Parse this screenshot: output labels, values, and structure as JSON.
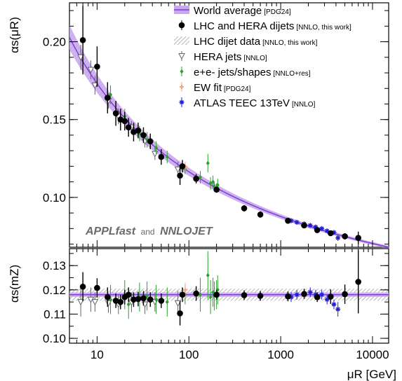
{
  "chart_data": [
    {
      "type": "scatter",
      "panel": "top",
      "ylabel": "αs(μR)",
      "ylim": [
        0.068,
        0.225
      ],
      "xlim": [
        5,
        15000
      ],
      "xscale": "log",
      "yticks": [
        0.1,
        0.15,
        0.2
      ],
      "ytick_labels": [
        "0.10",
        "0.15",
        "0.20"
      ],
      "annotation": {
        "bold1": "APPLfast",
        "mid": "and",
        "bold2": "NNLOJET"
      },
      "legend_position": "top-right",
      "legend": [
        {
          "id": "wa",
          "label": "World average",
          "sub": "[PDG24]",
          "color": "#7b3fd6",
          "marker": "band"
        },
        {
          "id": "lhc_hera",
          "label": "LHC and HERA dijets",
          "sub": "[NNLO, this work]",
          "color": "#000000",
          "marker": "circle"
        },
        {
          "id": "lhc_band",
          "label": "LHC dijet data",
          "sub": "[NNLO, this work]",
          "color": "#888888",
          "marker": "hatch"
        },
        {
          "id": "hera",
          "label": "HERA jets",
          "sub": "[NNLO]",
          "color": "#666666",
          "marker": "triangle-down-open"
        },
        {
          "id": "ee",
          "label": "e+e- jets/shapes",
          "sub": "[NNLO+res]",
          "color": "#2ca02c",
          "marker": "diamond"
        },
        {
          "id": "ew",
          "label": "EW fit",
          "sub": "[PDG24]",
          "color": "#f4a582",
          "marker": "cross"
        },
        {
          "id": "atlas",
          "label": "ATLAS TEEC 13TeV",
          "sub": "[NNLO]",
          "color": "#1f1fd6",
          "marker": "star"
        }
      ],
      "series": [
        {
          "id": "lhc_hera",
          "points": [
            [
              7,
              0.201,
              0.022
            ],
            [
              10,
              0.184,
              0.013
            ],
            [
              13,
              0.164,
              0.01
            ],
            [
              16,
              0.154,
              0.008
            ],
            [
              18,
              0.15,
              0.007
            ],
            [
              20,
              0.149,
              0.006
            ],
            [
              22,
              0.145,
              0.006
            ],
            [
              25,
              0.142,
              0.006
            ],
            [
              28,
              0.143,
              0.005
            ],
            [
              32,
              0.14,
              0.005
            ],
            [
              38,
              0.136,
              0.005
            ],
            [
              50,
              0.126,
              0.005
            ],
            [
              80,
              0.114,
              0.006
            ],
            [
              85,
              0.12,
              0.004
            ],
            [
              120,
              0.112,
              0.003
            ],
            [
              200,
              0.105,
              0.002
            ],
            [
              400,
              0.093,
              0.002
            ],
            [
              600,
              0.089,
              0.002
            ],
            [
              1200,
              0.085,
              0.0015
            ],
            [
              1800,
              0.082,
              0.0015
            ],
            [
              2500,
              0.079,
              0.0015
            ],
            [
              3500,
              0.077,
              0.0015
            ],
            [
              5000,
              0.075,
              0.002
            ],
            [
              7000,
              0.074,
              0.004
            ]
          ]
        },
        {
          "id": "hera",
          "points": [
            [
              7,
              0.19,
              0.008
            ],
            [
              9,
              0.182,
              0.006
            ],
            [
              10,
              0.172,
              0.006
            ],
            [
              14,
              0.162,
              0.005
            ],
            [
              18,
              0.152,
              0.005
            ],
            [
              25,
              0.145,
              0.004
            ],
            [
              35,
              0.136,
              0.004
            ],
            [
              45,
              0.128,
              0.004
            ],
            [
              80,
              0.118,
              0.005
            ]
          ]
        },
        {
          "id": "ee",
          "points": [
            [
              14,
              0.166,
              0.006
            ],
            [
              20,
              0.152,
              0.005
            ],
            [
              22,
              0.144,
              0.005
            ],
            [
              29,
              0.141,
              0.005
            ],
            [
              35,
              0.137,
              0.005
            ],
            [
              44,
              0.132,
              0.004
            ],
            [
              58,
              0.126,
              0.004
            ],
            [
              91,
              0.118,
              0.003
            ],
            [
              133,
              0.113,
              0.004
            ],
            [
              161,
              0.122,
              0.006
            ],
            [
              172,
              0.109,
              0.004
            ],
            [
              183,
              0.11,
              0.004
            ],
            [
              189,
              0.107,
              0.003
            ],
            [
              200,
              0.106,
              0.003
            ],
            [
              206,
              0.108,
              0.004
            ]
          ]
        },
        {
          "id": "ew",
          "points": [
            [
              91.19,
              0.1199,
              0.003
            ]
          ]
        },
        {
          "id": "atlas",
          "points": [
            [
              1300,
              0.085,
              0.001
            ],
            [
              1500,
              0.084,
              0.001
            ],
            [
              1800,
              0.083,
              0.001
            ],
            [
              2100,
              0.082,
              0.001
            ],
            [
              2400,
              0.081,
              0.001
            ],
            [
              2800,
              0.08,
              0.001
            ],
            [
              3200,
              0.0785,
              0.001
            ],
            [
              3800,
              0.0775,
              0.0012
            ],
            [
              4200,
              0.074,
              0.002
            ]
          ]
        }
      ]
    },
    {
      "type": "scatter",
      "panel": "bottom",
      "xlabel": "μR [GeV]",
      "ylabel": "αs(mZ)",
      "ylim": [
        0.098,
        0.137
      ],
      "xlim": [
        5,
        15000
      ],
      "xscale": "log",
      "xticks": [
        10,
        100,
        1000,
        10000
      ],
      "xtick_labels": [
        "10",
        "100",
        "1000",
        "10000"
      ],
      "yticks": [
        0.1,
        0.11,
        0.12,
        0.13
      ],
      "ytick_labels": [
        "0.10",
        "0.11",
        "0.12",
        "0.13"
      ],
      "world_average": {
        "value": 0.118,
        "unc": 0.0009
      },
      "series": [
        {
          "id": "lhc_hera",
          "points": [
            [
              7,
              0.1213,
              0.006
            ],
            [
              10,
              0.1208,
              0.004
            ],
            [
              13,
              0.117,
              0.004
            ],
            [
              16,
              0.1155,
              0.003
            ],
            [
              18,
              0.115,
              0.003
            ],
            [
              20,
              0.117,
              0.003
            ],
            [
              22,
              0.118,
              0.003
            ],
            [
              25,
              0.116,
              0.003
            ],
            [
              28,
              0.1162,
              0.003
            ],
            [
              32,
              0.1165,
              0.003
            ],
            [
              38,
              0.116,
              0.003
            ],
            [
              50,
              0.1155,
              0.003
            ],
            [
              80,
              0.1103,
              0.005
            ],
            [
              85,
              0.118,
              0.003
            ],
            [
              120,
              0.1185,
              0.003
            ],
            [
              200,
              0.118,
              0.002
            ],
            [
              400,
              0.1178,
              0.002
            ],
            [
              600,
              0.1175,
              0.002
            ],
            [
              1200,
              0.1173,
              0.002
            ],
            [
              1800,
              0.1183,
              0.002
            ],
            [
              2500,
              0.117,
              0.002
            ],
            [
              3500,
              0.1172,
              0.003
            ],
            [
              5000,
              0.1182,
              0.004
            ],
            [
              7000,
              0.1233,
              0.013
            ]
          ]
        },
        {
          "id": "hera",
          "points": [
            [
              7,
              0.115,
              0.006
            ],
            [
              9,
              0.116,
              0.005
            ],
            [
              10,
              0.115,
              0.004
            ],
            [
              14,
              0.1145,
              0.004
            ],
            [
              18,
              0.114,
              0.004
            ],
            [
              25,
              0.1148,
              0.004
            ],
            [
              35,
              0.114,
              0.004
            ],
            [
              45,
              0.115,
              0.004
            ],
            [
              80,
              0.1145,
              0.005
            ]
          ]
        },
        {
          "id": "ee",
          "points": [
            [
              14,
              0.116,
              0.006
            ],
            [
              20,
              0.118,
              0.006
            ],
            [
              22,
              0.114,
              0.006
            ],
            [
              29,
              0.117,
              0.006
            ],
            [
              35,
              0.1175,
              0.006
            ],
            [
              44,
              0.116,
              0.006
            ],
            [
              58,
              0.115,
              0.006
            ],
            [
              91,
              0.118,
              0.004
            ],
            [
              133,
              0.118,
              0.007
            ],
            [
              161,
              0.126,
              0.01
            ],
            [
              172,
              0.117,
              0.007
            ],
            [
              183,
              0.119,
              0.006
            ],
            [
              189,
              0.1175,
              0.006
            ],
            [
              200,
              0.118,
              0.006
            ],
            [
              206,
              0.12,
              0.006
            ]
          ]
        },
        {
          "id": "ew",
          "points": [
            [
              91.19,
              0.1199,
              0.003
            ]
          ]
        },
        {
          "id": "atlas",
          "points": [
            [
              1300,
              0.117,
              0.002
            ],
            [
              1500,
              0.118,
              0.002
            ],
            [
              1800,
              0.1185,
              0.002
            ],
            [
              2100,
              0.119,
              0.002
            ],
            [
              2400,
              0.118,
              0.002
            ],
            [
              2800,
              0.118,
              0.002
            ],
            [
              3200,
              0.116,
              0.002
            ],
            [
              3800,
              0.114,
              0.002
            ],
            [
              4200,
              0.112,
              0.003
            ]
          ]
        }
      ]
    }
  ],
  "title": ""
}
